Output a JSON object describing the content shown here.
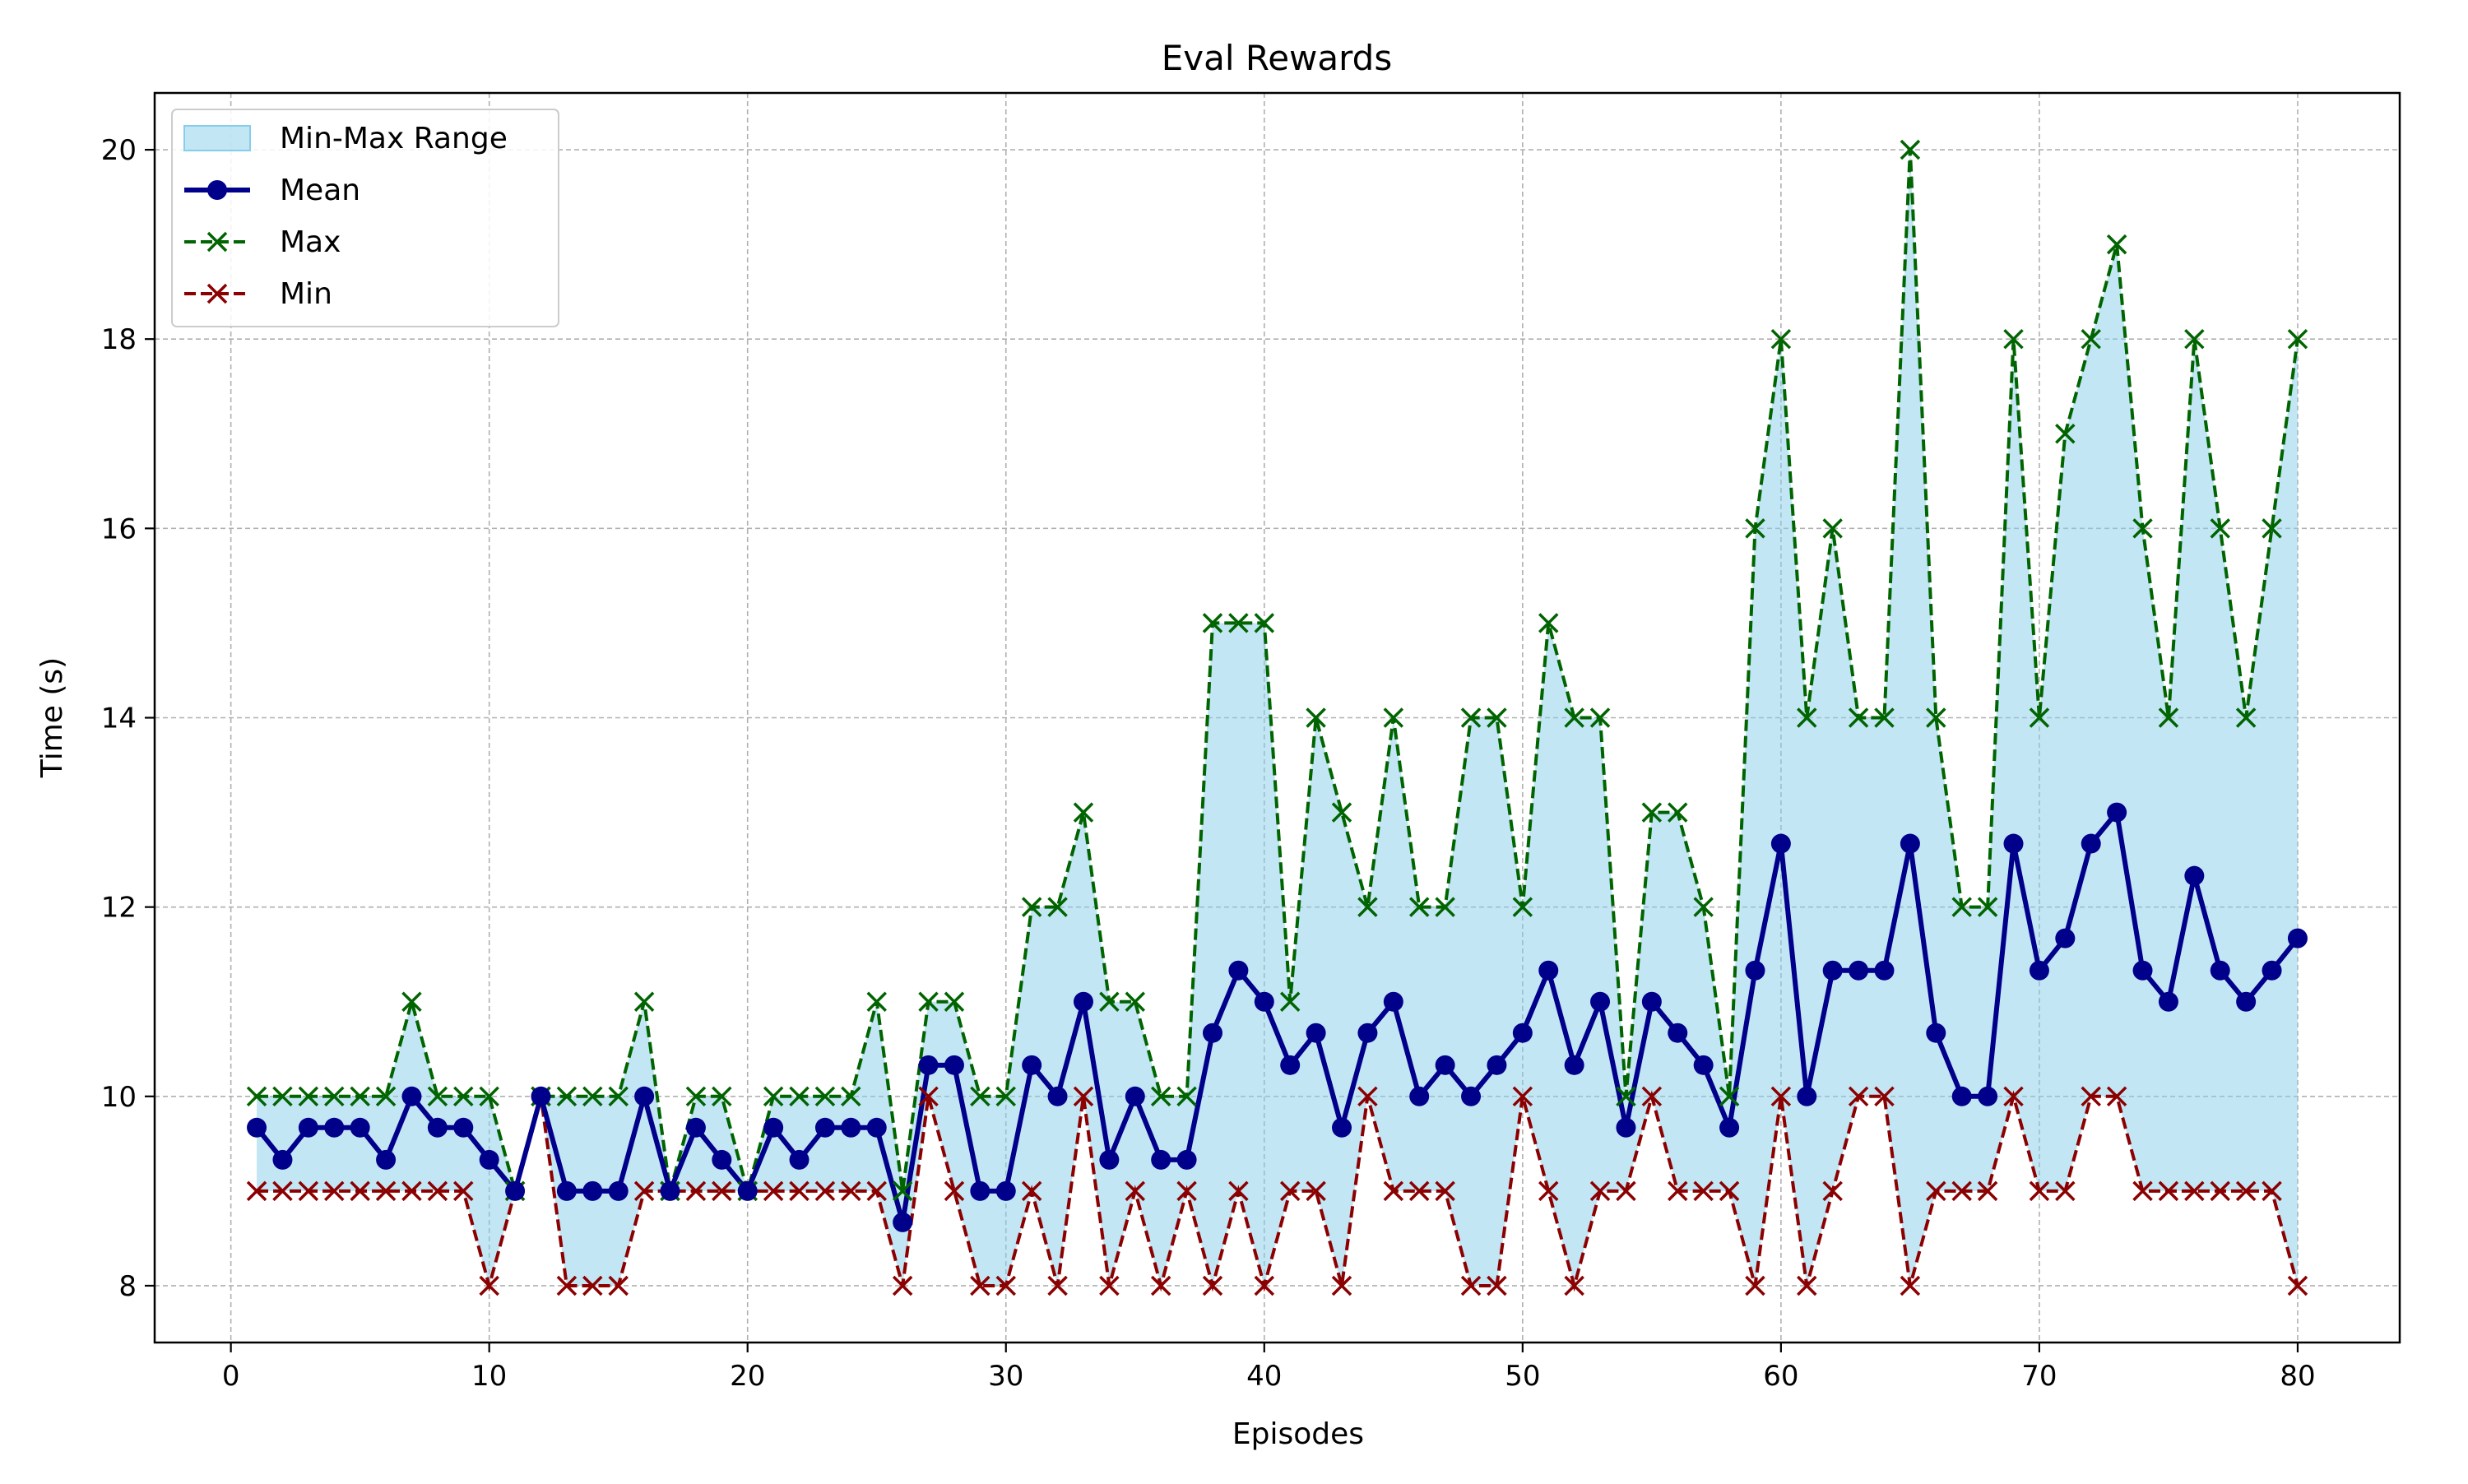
{
  "chart_data": {
    "type": "line",
    "title": "Eval Rewards",
    "xlabel": "Episodes",
    "ylabel": "Time (s)",
    "xlim": [
      -2.95,
      83.95
    ],
    "ylim": [
      7.4,
      20.6
    ],
    "xticks": [
      0,
      10,
      20,
      30,
      40,
      50,
      60,
      70,
      80
    ],
    "xtick_labels": [
      "0",
      "10",
      "20",
      "30",
      "40",
      "50",
      "60",
      "70",
      "80"
    ],
    "yticks": [
      8,
      10,
      12,
      14,
      16,
      18,
      20
    ],
    "ytick_labels": [
      "8",
      "10",
      "12",
      "14",
      "16",
      "18",
      "20"
    ],
    "grid": true,
    "legend_position": "top-left",
    "x": [
      1,
      2,
      3,
      4,
      5,
      6,
      7,
      8,
      9,
      10,
      11,
      12,
      13,
      14,
      15,
      16,
      17,
      18,
      19,
      20,
      21,
      22,
      23,
      24,
      25,
      26,
      27,
      28,
      29,
      30,
      31,
      32,
      33,
      34,
      35,
      36,
      37,
      38,
      39,
      40,
      41,
      42,
      43,
      44,
      45,
      46,
      47,
      48,
      49,
      50,
      51,
      52,
      53,
      54,
      55,
      56,
      57,
      58,
      59,
      60,
      61,
      62,
      63,
      64,
      65,
      66,
      67,
      68,
      69,
      70,
      71,
      72,
      73,
      74,
      75,
      76,
      77,
      78,
      79,
      80
    ],
    "series": [
      {
        "name": "Min-Max Range",
        "kind": "fill_between",
        "color": "#87CEEB"
      },
      {
        "name": "Mean",
        "kind": "line-marker-circle",
        "color": "#00008B",
        "values": [
          9.67,
          9.33,
          9.67,
          9.67,
          9.67,
          9.33,
          10,
          9.67,
          9.67,
          9.33,
          9,
          10,
          9,
          9,
          9,
          10,
          9,
          9.67,
          9.33,
          9,
          9.67,
          9.33,
          9.67,
          9.67,
          9.67,
          8.67,
          10.33,
          10.33,
          9,
          9,
          10.33,
          10,
          11,
          9.33,
          10,
          9.33,
          9.33,
          10.67,
          11.33,
          11,
          10.33,
          10.67,
          9.67,
          10.67,
          11,
          10,
          10.33,
          10,
          10.33,
          10.67,
          11.33,
          10.33,
          11,
          9.67,
          11,
          10.67,
          10.33,
          9.67,
          11.33,
          12.67,
          10,
          11.33,
          11.33,
          11.33,
          12.67,
          10.67,
          10,
          10,
          12.67,
          11.33,
          11.67,
          12.67,
          13,
          11.33,
          11,
          12.33,
          11.33,
          11,
          11.33,
          11.67
        ]
      },
      {
        "name": "Max",
        "kind": "dashed-marker-x",
        "color": "#006400",
        "values": [
          10,
          10,
          10,
          10,
          10,
          10,
          11,
          10,
          10,
          10,
          9,
          10,
          10,
          10,
          10,
          11,
          9,
          10,
          10,
          9,
          10,
          10,
          10,
          10,
          11,
          9,
          11,
          11,
          10,
          10,
          12,
          12,
          13,
          11,
          11,
          10,
          10,
          15,
          15,
          15,
          11,
          14,
          13,
          12,
          14,
          12,
          12,
          14,
          14,
          12,
          15,
          14,
          14,
          10,
          13,
          13,
          12,
          10,
          16,
          18,
          14,
          16,
          14,
          14,
          20,
          14,
          12,
          12,
          18,
          14,
          17,
          18,
          19,
          16,
          14,
          18,
          16,
          14,
          16,
          18
        ]
      },
      {
        "name": "Min",
        "kind": "dashed-marker-x",
        "color": "#8B0000",
        "values": [
          9,
          9,
          9,
          9,
          9,
          9,
          9,
          9,
          9,
          8,
          9,
          10,
          8,
          8,
          8,
          9,
          9,
          9,
          9,
          9,
          9,
          9,
          9,
          9,
          9,
          8,
          10,
          9,
          8,
          8,
          9,
          8,
          10,
          8,
          9,
          8,
          9,
          8,
          9,
          8,
          9,
          9,
          8,
          10,
          9,
          9,
          9,
          8,
          8,
          10,
          9,
          8,
          9,
          9,
          10,
          9,
          9,
          9,
          8,
          10,
          8,
          9,
          10,
          10,
          8,
          9,
          9,
          9,
          10,
          9,
          9,
          10,
          10,
          9,
          9,
          9,
          9,
          9,
          9,
          8
        ]
      }
    ]
  }
}
